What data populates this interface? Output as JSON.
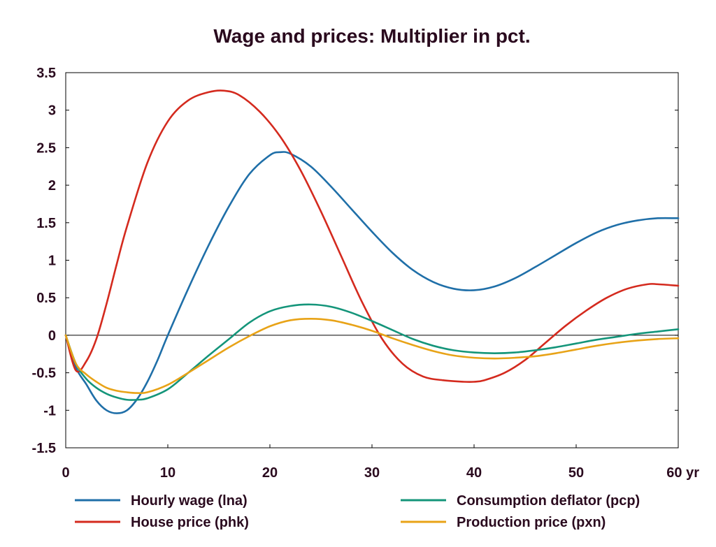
{
  "chart_data": {
    "type": "line",
    "title": "Wage and prices: Multiplier in pct.",
    "xlabel": "",
    "ylabel": "",
    "x_unit_label": "yr",
    "xlim": [
      0,
      60
    ],
    "ylim": [
      -1.5,
      3.5
    ],
    "x_ticks": [
      0,
      10,
      20,
      30,
      40,
      50,
      60
    ],
    "x_tick_labels": [
      "0",
      "10",
      "20",
      "30",
      "40",
      "50",
      "60 yr"
    ],
    "y_ticks": [
      3.5,
      3,
      2.5,
      2,
      1.5,
      1,
      0.5,
      0,
      -0.5,
      -1,
      -1.5
    ],
    "y_tick_labels": [
      "3.5",
      "3",
      "2.5",
      "2",
      "1.5",
      "1",
      "0.5",
      "0",
      "-0.5",
      "-1",
      "-1.5"
    ],
    "grid": false,
    "zero_line": true,
    "legend_position": "bottom",
    "series": [
      {
        "name": "Hourly wage (lna)",
        "color": "#1f6fa8",
        "x": [
          0,
          1,
          2,
          3,
          4,
          5,
          6,
          7,
          8,
          9,
          10,
          12,
          14,
          16,
          18,
          20,
          21,
          22,
          24,
          26,
          28,
          30,
          32,
          34,
          36,
          38,
          40,
          42,
          44,
          46,
          48,
          50,
          52,
          54,
          56,
          58,
          60
        ],
        "y": [
          0,
          -0.43,
          -0.65,
          -0.87,
          -1.0,
          -1.04,
          -1.0,
          -0.85,
          -0.62,
          -0.33,
          0.0,
          0.62,
          1.2,
          1.72,
          2.15,
          2.4,
          2.44,
          2.42,
          2.25,
          1.98,
          1.68,
          1.38,
          1.1,
          0.87,
          0.71,
          0.62,
          0.6,
          0.65,
          0.76,
          0.91,
          1.07,
          1.23,
          1.37,
          1.47,
          1.53,
          1.56,
          1.56
        ]
      },
      {
        "name": "House price (phk)",
        "color": "#d42a1e",
        "x": [
          0,
          1,
          2,
          3,
          4,
          5,
          6,
          8,
          10,
          12,
          14,
          15.5,
          17,
          19,
          21,
          23,
          25,
          27,
          29,
          31,
          33,
          35,
          37,
          39,
          40,
          41,
          43,
          45,
          47,
          49,
          51,
          53,
          55,
          57,
          58,
          60
        ],
        "y": [
          0,
          -0.47,
          -0.35,
          -0.05,
          0.42,
          0.95,
          1.45,
          2.3,
          2.85,
          3.13,
          3.24,
          3.26,
          3.2,
          2.98,
          2.65,
          2.2,
          1.65,
          1.05,
          0.45,
          -0.05,
          -0.38,
          -0.55,
          -0.6,
          -0.62,
          -0.62,
          -0.6,
          -0.5,
          -0.33,
          -0.1,
          0.13,
          0.33,
          0.5,
          0.62,
          0.68,
          0.68,
          0.66
        ]
      },
      {
        "name": "Consumption deflator (pcp)",
        "color": "#14957a",
        "x": [
          0,
          1,
          2,
          3,
          4,
          5,
          6,
          7,
          8,
          10,
          12,
          14,
          16,
          18,
          20,
          22,
          24,
          26,
          28,
          30,
          32,
          34,
          36,
          38,
          40,
          42,
          44,
          46,
          48,
          50,
          52,
          54,
          56,
          58,
          60
        ],
        "y": [
          0,
          -0.38,
          -0.58,
          -0.7,
          -0.78,
          -0.83,
          -0.86,
          -0.86,
          -0.84,
          -0.72,
          -0.5,
          -0.27,
          -0.05,
          0.17,
          0.32,
          0.39,
          0.41,
          0.38,
          0.3,
          0.19,
          0.07,
          -0.05,
          -0.14,
          -0.2,
          -0.23,
          -0.24,
          -0.23,
          -0.2,
          -0.16,
          -0.11,
          -0.06,
          -0.02,
          0.02,
          0.05,
          0.08
        ]
      },
      {
        "name": "Production price (pxn)",
        "color": "#e8a317",
        "x": [
          0,
          1,
          2,
          3,
          4,
          5,
          6,
          7,
          8,
          10,
          12,
          14,
          16,
          18,
          20,
          22,
          24,
          26,
          28,
          30,
          32,
          34,
          36,
          38,
          40,
          42,
          44,
          46,
          48,
          50,
          52,
          54,
          56,
          58,
          60
        ],
        "y": [
          0,
          -0.38,
          -0.52,
          -0.62,
          -0.7,
          -0.74,
          -0.76,
          -0.77,
          -0.76,
          -0.66,
          -0.5,
          -0.33,
          -0.16,
          -0.01,
          0.12,
          0.2,
          0.22,
          0.2,
          0.14,
          0.06,
          -0.04,
          -0.13,
          -0.21,
          -0.27,
          -0.3,
          -0.31,
          -0.3,
          -0.28,
          -0.24,
          -0.19,
          -0.14,
          -0.1,
          -0.07,
          -0.05,
          -0.04
        ]
      }
    ]
  }
}
